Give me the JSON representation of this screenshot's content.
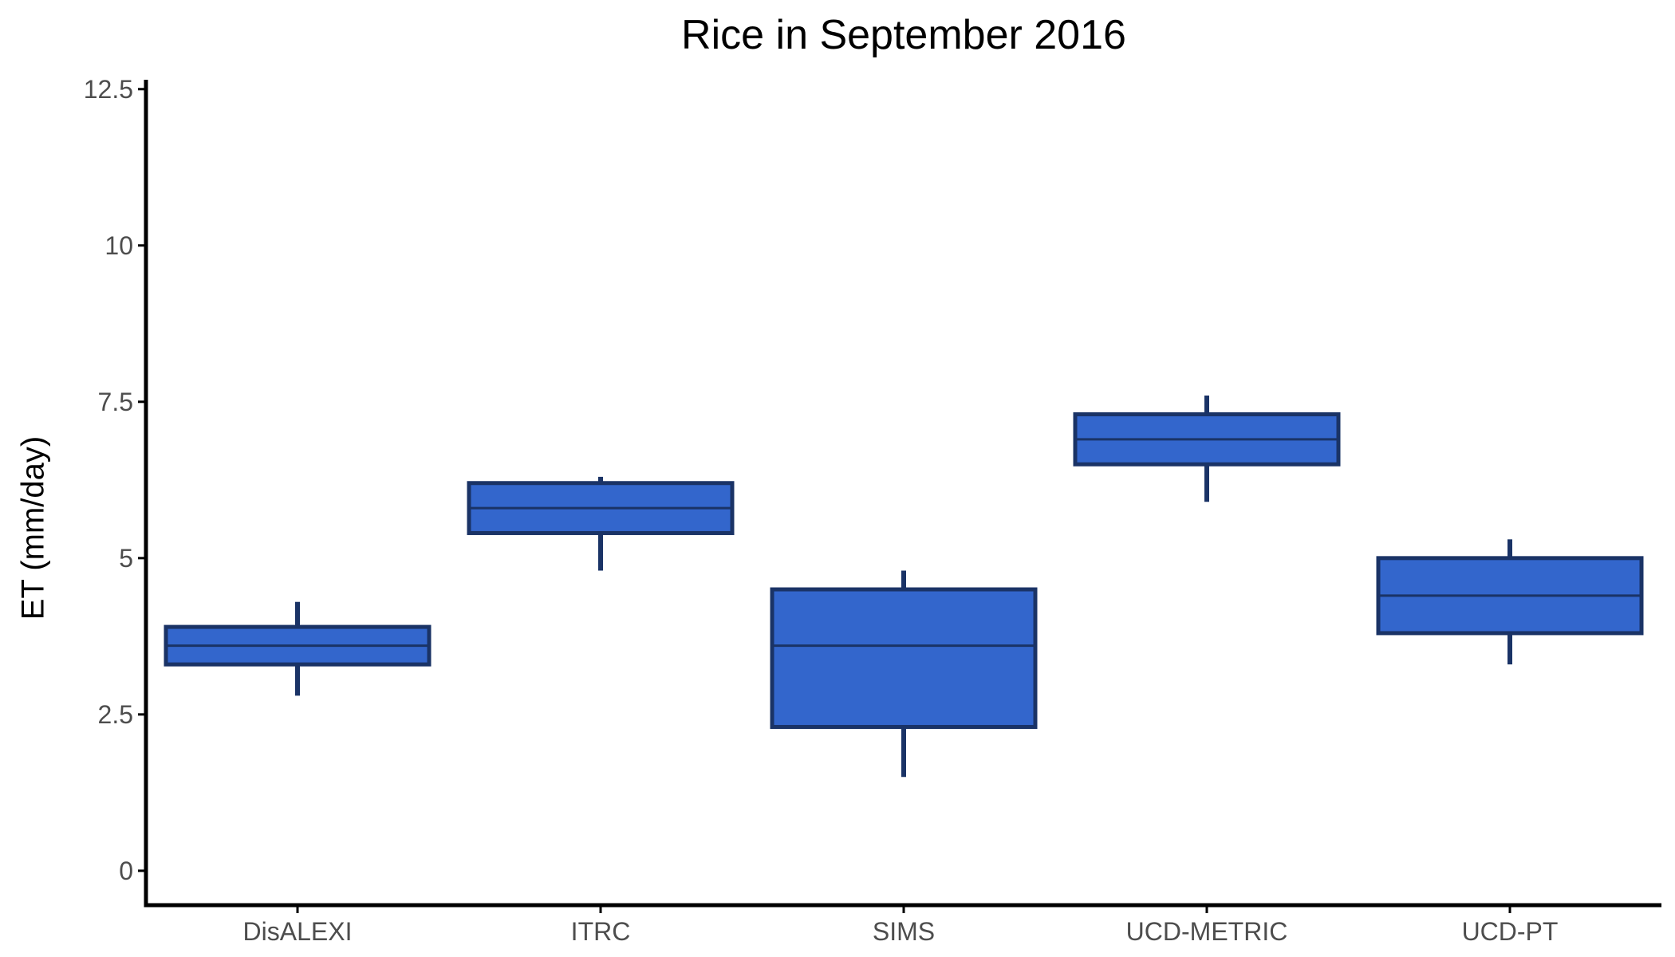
{
  "chart_data": {
    "type": "boxplot",
    "title": "Rice in September 2016",
    "xlabel": "",
    "ylabel": "ET (mm/day)",
    "categories": [
      "DisALEXI",
      "ITRC",
      "SIMS",
      "UCD-METRIC",
      "UCD-PT"
    ],
    "boxes": [
      {
        "category": "DisALEXI",
        "whisker_low": 2.8,
        "q1": 3.3,
        "median": 3.6,
        "q3": 3.9,
        "whisker_high": 4.3
      },
      {
        "category": "ITRC",
        "whisker_low": 4.8,
        "q1": 5.4,
        "median": 5.8,
        "q3": 6.2,
        "whisker_high": 6.3
      },
      {
        "category": "SIMS",
        "whisker_low": 1.5,
        "q1": 2.3,
        "median": 3.6,
        "q3": 4.5,
        "whisker_high": 4.8
      },
      {
        "category": "UCD-METRIC",
        "whisker_low": 5.9,
        "q1": 6.5,
        "median": 6.9,
        "q3": 7.3,
        "whisker_high": 7.6
      },
      {
        "category": "UCD-PT",
        "whisker_low": 3.3,
        "q1": 3.8,
        "median": 4.4,
        "q3": 5.0,
        "whisker_high": 5.3
      }
    ],
    "y_ticks": [
      0,
      2.5,
      5,
      7.5,
      10,
      12.5
    ],
    "y_tick_labels": [
      "0",
      "2.5",
      "5",
      "7.5",
      "10",
      "12.5"
    ],
    "ylim": [
      -0.55,
      12.65
    ],
    "grid": false,
    "legend": "none",
    "colors": {
      "box_fill": "#3366cc",
      "box_outline": "#1a3366",
      "axis": "#000000",
      "tick_label": "#4d4d4d"
    }
  }
}
